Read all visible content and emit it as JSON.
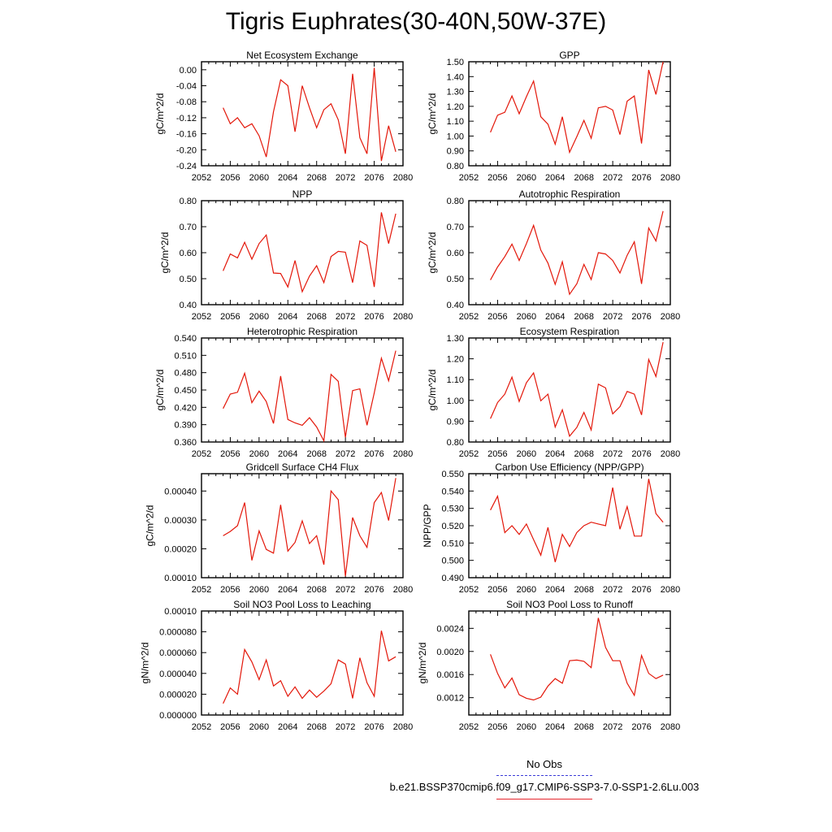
{
  "title": "Tigris Euphrates(30-40N,50W-37E)",
  "colors": {
    "line": "#e3170a",
    "obs_line": "#3c3cd8",
    "axis": "#000000"
  },
  "legend": {
    "obs_label": "No Obs",
    "run_label": "b.e21.BSSP370cmip6.f09_g17.CMIP6-SSP3-7.0-SSP1-2.6Lu.003"
  },
  "chart_data": [
    {
      "type": "line",
      "title": "Net Ecosystem Exchange",
      "ylabel": "gC/m^2/d",
      "xlabel": "",
      "xlim": [
        2052,
        2080
      ],
      "ylim": [
        -0.24,
        0.02
      ],
      "xticks": [
        "2052",
        "2056",
        "2060",
        "2064",
        "2068",
        "2072",
        "2076",
        "2080"
      ],
      "yticks": [
        "0.00",
        "-0.04",
        "-0.08",
        "-0.12",
        "-0.16",
        "-0.20",
        "-0.24"
      ],
      "x": [
        2055,
        2056,
        2057,
        2058,
        2059,
        2060,
        2061,
        2062,
        2063,
        2064,
        2065,
        2066,
        2067,
        2068,
        2069,
        2070,
        2071,
        2072,
        2073,
        2074,
        2075,
        2076,
        2077,
        2078,
        2079
      ],
      "series": [
        {
          "values": [
            -0.095,
            -0.135,
            -0.12,
            -0.145,
            -0.135,
            -0.165,
            -0.218,
            -0.105,
            -0.025,
            -0.04,
            -0.155,
            -0.04,
            -0.095,
            -0.145,
            -0.1,
            -0.085,
            -0.125,
            -0.21,
            -0.01,
            -0.17,
            -0.21,
            0.005,
            -0.228,
            -0.14,
            -0.205
          ]
        }
      ]
    },
    {
      "type": "line",
      "title": "GPP",
      "ylabel": "gC/m^2/d",
      "xlabel": "",
      "xlim": [
        2052,
        2080
      ],
      "ylim": [
        0.8,
        1.5
      ],
      "xticks": [
        "2052",
        "2056",
        "2060",
        "2064",
        "2068",
        "2072",
        "2076",
        "2080"
      ],
      "yticks": [
        "1.50",
        "1.40",
        "1.30",
        "1.20",
        "1.10",
        "1.00",
        "0.90",
        "0.80"
      ],
      "x": [
        2055,
        2056,
        2057,
        2058,
        2059,
        2060,
        2061,
        2062,
        2063,
        2064,
        2065,
        2066,
        2067,
        2068,
        2069,
        2070,
        2071,
        2072,
        2073,
        2074,
        2075,
        2076,
        2077,
        2078,
        2079
      ],
      "series": [
        {
          "values": [
            1.025,
            1.14,
            1.16,
            1.27,
            1.15,
            1.265,
            1.37,
            1.13,
            1.08,
            0.945,
            1.13,
            0.89,
            0.995,
            1.105,
            0.985,
            1.19,
            1.2,
            1.175,
            1.01,
            1.235,
            1.27,
            0.95,
            1.445,
            1.28,
            1.5
          ]
        }
      ]
    },
    {
      "type": "line",
      "title": "NPP",
      "ylabel": "gC/m^2/d",
      "xlabel": "",
      "xlim": [
        2052,
        2080
      ],
      "ylim": [
        0.4,
        0.8
      ],
      "xticks": [
        "2052",
        "2056",
        "2060",
        "2064",
        "2068",
        "2072",
        "2076",
        "2080"
      ],
      "yticks": [
        "0.80",
        "0.70",
        "0.60",
        "0.50",
        "0.40"
      ],
      "x": [
        2055,
        2056,
        2057,
        2058,
        2059,
        2060,
        2061,
        2062,
        2063,
        2064,
        2065,
        2066,
        2067,
        2068,
        2069,
        2070,
        2071,
        2072,
        2073,
        2074,
        2075,
        2076,
        2077,
        2078,
        2079
      ],
      "series": [
        {
          "values": [
            0.53,
            0.595,
            0.58,
            0.64,
            0.575,
            0.635,
            0.668,
            0.522,
            0.52,
            0.468,
            0.57,
            0.45,
            0.51,
            0.55,
            0.485,
            0.585,
            0.605,
            0.602,
            0.485,
            0.645,
            0.628,
            0.468,
            0.755,
            0.635,
            0.75
          ]
        }
      ]
    },
    {
      "type": "line",
      "title": "Autotrophic Respiration",
      "ylabel": "gC/m^2/d",
      "xlabel": "",
      "xlim": [
        2052,
        2080
      ],
      "ylim": [
        0.4,
        0.8
      ],
      "xticks": [
        "2052",
        "2056",
        "2060",
        "2064",
        "2068",
        "2072",
        "2076",
        "2080"
      ],
      "yticks": [
        "0.80",
        "0.70",
        "0.60",
        "0.50",
        "0.40"
      ],
      "x": [
        2055,
        2056,
        2057,
        2058,
        2059,
        2060,
        2061,
        2062,
        2063,
        2064,
        2065,
        2066,
        2067,
        2068,
        2069,
        2070,
        2071,
        2072,
        2073,
        2074,
        2075,
        2076,
        2077,
        2078,
        2079
      ],
      "series": [
        {
          "values": [
            0.495,
            0.545,
            0.585,
            0.633,
            0.57,
            0.635,
            0.705,
            0.61,
            0.56,
            0.478,
            0.565,
            0.44,
            0.48,
            0.555,
            0.497,
            0.6,
            0.595,
            0.57,
            0.522,
            0.59,
            0.642,
            0.48,
            0.695,
            0.645,
            0.76
          ]
        }
      ]
    },
    {
      "type": "line",
      "title": "Heterotrophic Respiration",
      "ylabel": "gC/m^2/d",
      "xlabel": "",
      "xlim": [
        2052,
        2080
      ],
      "ylim": [
        0.36,
        0.54
      ],
      "xticks": [
        "2052",
        "2056",
        "2060",
        "2064",
        "2068",
        "2072",
        "2076",
        "2080"
      ],
      "yticks": [
        "0.540",
        "0.510",
        "0.480",
        "0.450",
        "0.420",
        "0.390",
        "0.360"
      ],
      "x": [
        2055,
        2056,
        2057,
        2058,
        2059,
        2060,
        2061,
        2062,
        2063,
        2064,
        2065,
        2066,
        2067,
        2068,
        2069,
        2070,
        2071,
        2072,
        2073,
        2074,
        2075,
        2076,
        2077,
        2078,
        2079
      ],
      "series": [
        {
          "values": [
            0.418,
            0.443,
            0.446,
            0.479,
            0.428,
            0.448,
            0.43,
            0.392,
            0.474,
            0.399,
            0.393,
            0.389,
            0.402,
            0.386,
            0.362,
            0.477,
            0.465,
            0.368,
            0.449,
            0.452,
            0.389,
            0.445,
            0.505,
            0.466,
            0.518
          ]
        }
      ]
    },
    {
      "type": "line",
      "title": "Ecosystem Respiration",
      "ylabel": "gC/m^2/d",
      "xlabel": "",
      "xlim": [
        2052,
        2080
      ],
      "ylim": [
        0.8,
        1.3
      ],
      "xticks": [
        "2052",
        "2056",
        "2060",
        "2064",
        "2068",
        "2072",
        "2076",
        "2080"
      ],
      "yticks": [
        "1.30",
        "1.20",
        "1.10",
        "1.00",
        "0.90",
        "0.80"
      ],
      "x": [
        2055,
        2056,
        2057,
        2058,
        2059,
        2060,
        2061,
        2062,
        2063,
        2064,
        2065,
        2066,
        2067,
        2068,
        2069,
        2070,
        2071,
        2072,
        2073,
        2074,
        2075,
        2076,
        2077,
        2078,
        2079
      ],
      "series": [
        {
          "values": [
            0.912,
            0.99,
            1.03,
            1.112,
            0.995,
            1.085,
            1.132,
            0.998,
            1.03,
            0.872,
            0.955,
            0.828,
            0.87,
            0.942,
            0.858,
            1.078,
            1.06,
            0.935,
            0.97,
            1.043,
            1.03,
            0.93,
            1.197,
            1.115,
            1.28
          ]
        }
      ]
    },
    {
      "type": "line",
      "title": "Gridcell Surface CH4 Flux",
      "ylabel": "gC/m^2/d",
      "xlabel": "",
      "xlim": [
        2052,
        2080
      ],
      "ylim": [
        0.0001,
        0.00046
      ],
      "xticks": [
        "2052",
        "2056",
        "2060",
        "2064",
        "2068",
        "2072",
        "2076",
        "2080"
      ],
      "yticks": [
        "0.00040",
        "0.00030",
        "0.00020",
        "0.00010"
      ],
      "x": [
        2055,
        2056,
        2057,
        2058,
        2059,
        2060,
        2061,
        2062,
        2063,
        2064,
        2065,
        2066,
        2067,
        2068,
        2069,
        2070,
        2071,
        2072,
        2073,
        2074,
        2075,
        2076,
        2077,
        2078,
        2079
      ],
      "series": [
        {
          "values": [
            0.000245,
            0.00026,
            0.00028,
            0.00036,
            0.00016,
            0.000262,
            0.000198,
            0.000185,
            0.000352,
            0.000192,
            0.000222,
            0.000297,
            0.000218,
            0.000245,
            0.000145,
            0.0004,
            0.00037,
            0.000105,
            0.000308,
            0.000245,
            0.000205,
            0.00036,
            0.000395,
            0.000298,
            0.000445
          ]
        }
      ]
    },
    {
      "type": "line",
      "title": "Carbon Use Efficiency (NPP/GPP)",
      "ylabel": "NPP/GPP",
      "xlabel": "",
      "xlim": [
        2052,
        2080
      ],
      "ylim": [
        0.49,
        0.55
      ],
      "xticks": [
        "2052",
        "2056",
        "2060",
        "2064",
        "2068",
        "2072",
        "2076",
        "2080"
      ],
      "yticks": [
        "0.550",
        "0.540",
        "0.530",
        "0.520",
        "0.510",
        "0.500",
        "0.490"
      ],
      "x": [
        2055,
        2056,
        2057,
        2058,
        2059,
        2060,
        2061,
        2062,
        2063,
        2064,
        2065,
        2066,
        2067,
        2068,
        2069,
        2070,
        2071,
        2072,
        2073,
        2074,
        2075,
        2076,
        2077,
        2078,
        2079
      ],
      "series": [
        {
          "values": [
            0.529,
            0.537,
            0.516,
            0.52,
            0.515,
            0.521,
            0.512,
            0.503,
            0.519,
            0.499,
            0.515,
            0.508,
            0.516,
            0.52,
            0.522,
            0.521,
            0.52,
            0.542,
            0.518,
            0.531,
            0.514,
            0.514,
            0.547,
            0.527,
            0.522
          ]
        }
      ]
    },
    {
      "type": "line",
      "title": "Soil NO3 Pool Loss to Leaching",
      "ylabel": "gN/m^2/d",
      "xlabel": "",
      "xlim": [
        2052,
        2080
      ],
      "ylim": [
        0.0,
        0.0001
      ],
      "xticks": [
        "2052",
        "2056",
        "2060",
        "2064",
        "2068",
        "2072",
        "2076",
        "2080"
      ],
      "yticks": [
        "0.00010",
        "0.000080",
        "0.000060",
        "0.000040",
        "0.000020",
        "0.000000"
      ],
      "x": [
        2055,
        2056,
        2057,
        2058,
        2059,
        2060,
        2061,
        2062,
        2063,
        2064,
        2065,
        2066,
        2067,
        2068,
        2069,
        2070,
        2071,
        2072,
        2073,
        2074,
        2075,
        2076,
        2077,
        2078,
        2079
      ],
      "series": [
        {
          "values": [
            1.1e-05,
            2.6e-05,
            2e-05,
            6.3e-05,
            5.1e-05,
            3.4e-05,
            5.3e-05,
            2.8e-05,
            3.3e-05,
            1.8e-05,
            2.7e-05,
            1.6e-05,
            2.4e-05,
            1.7e-05,
            2.3e-05,
            3e-05,
            5.3e-05,
            4.9e-05,
            1.6e-05,
            5.5e-05,
            3.1e-05,
            1.8e-05,
            8.1e-05,
            5.2e-05,
            5.6e-05
          ]
        }
      ]
    },
    {
      "type": "line",
      "title": "Soil NO3 Pool Loss to Runoff",
      "ylabel": "gN/m^2/d",
      "xlabel": "",
      "xlim": [
        2052,
        2080
      ],
      "ylim": [
        0.0009,
        0.0027
      ],
      "xticks": [
        "2052",
        "2056",
        "2060",
        "2064",
        "2068",
        "2072",
        "2076",
        "2080"
      ],
      "yticks": [
        "0.0024",
        "0.0020",
        "0.0016",
        "0.0012"
      ],
      "x": [
        2055,
        2056,
        2057,
        2058,
        2059,
        2060,
        2061,
        2062,
        2063,
        2064,
        2065,
        2066,
        2067,
        2068,
        2069,
        2070,
        2071,
        2072,
        2073,
        2074,
        2075,
        2076,
        2077,
        2078,
        2079
      ],
      "series": [
        {
          "values": [
            0.00195,
            0.00162,
            0.00137,
            0.00154,
            0.00125,
            0.00119,
            0.00116,
            0.00121,
            0.0014,
            0.00153,
            0.00145,
            0.00184,
            0.00185,
            0.00183,
            0.00172,
            0.00258,
            0.00207,
            0.00184,
            0.00184,
            0.00145,
            0.00124,
            0.00193,
            0.00162,
            0.00153,
            0.00159
          ]
        }
      ]
    }
  ]
}
